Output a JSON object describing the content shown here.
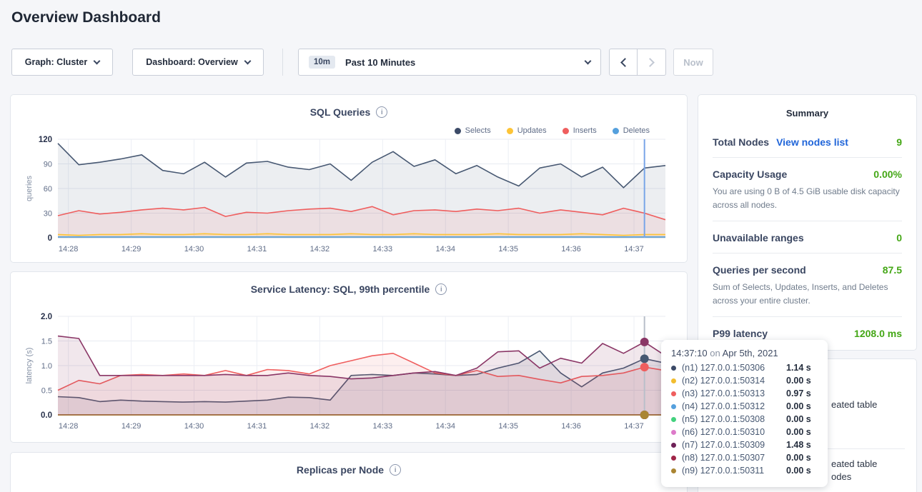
{
  "page": {
    "title": "Overview Dashboard"
  },
  "controls": {
    "graph_dropdown": "Graph: Cluster",
    "dashboard_dropdown": "Dashboard: Overview",
    "time_badge": "10m",
    "time_label": "Past 10 Minutes",
    "now_button": "Now"
  },
  "summary": {
    "title": "Summary",
    "rows": [
      {
        "label": "Total Nodes",
        "link": "View nodes list",
        "value": "9",
        "desc": ""
      },
      {
        "label": "Capacity Usage",
        "link": "",
        "value": "0.00%",
        "desc": "You are using 0 B of 4.5 GiB usable disk capacity across all nodes."
      },
      {
        "label": "Unavailable ranges",
        "link": "",
        "value": "0",
        "desc": ""
      },
      {
        "label": "Queries per second",
        "link": "",
        "value": "87.5",
        "desc": "Sum of Selects, Updates, Inserts, and Deletes across your entire cluster."
      },
      {
        "label": "P99 latency",
        "link": "",
        "value": "1208.0 ms",
        "desc": ""
      }
    ]
  },
  "events_panel": {
    "fragment1": "eated table",
    "fragment2": "eated table",
    "fragment3": "odes"
  },
  "tooltip": {
    "time": "14:37:10",
    "connector": "on",
    "date": "Apr 5th, 2021",
    "rows": [
      {
        "color": "#3b4a67",
        "label": "(n1) 127.0.0.1:50306",
        "value": "1.14 s"
      },
      {
        "color": "#f2bd2f",
        "label": "(n2) 127.0.0.1:50314",
        "value": "0.00 s"
      },
      {
        "color": "#ef5e5e",
        "label": "(n3) 127.0.0.1:50313",
        "value": "0.97 s"
      },
      {
        "color": "#55a0dd",
        "label": "(n4) 127.0.0.1:50312",
        "value": "0.00 s"
      },
      {
        "color": "#43d17e",
        "label": "(n5) 127.0.0.1:50308",
        "value": "0.00 s"
      },
      {
        "color": "#dd7ac9",
        "label": "(n6) 127.0.0.1:50310",
        "value": "0.00 s"
      },
      {
        "color": "#6e2158",
        "label": "(n7) 127.0.0.1:50309",
        "value": "1.48 s"
      },
      {
        "color": "#a02648",
        "label": "(n8) 127.0.0.1:50307",
        "value": "0.00 s"
      },
      {
        "color": "#aa8532",
        "label": "(n9) 127.0.0.1:50311",
        "value": "0.00 s"
      }
    ]
  },
  "chart_data": [
    {
      "id": "sql",
      "type": "line",
      "title": "SQL Queries",
      "ylabel": "queries",
      "ylim": [
        0,
        120
      ],
      "yticks": [
        0,
        30,
        60,
        90,
        120
      ],
      "ytick_labels": [
        "0",
        "30",
        "60",
        "90",
        "120"
      ],
      "ytick_bold": [
        true,
        false,
        false,
        false,
        true
      ],
      "xticks": [
        "14:28",
        "14:29",
        "14:30",
        "14:31",
        "14:32",
        "14:33",
        "14:34",
        "14:35",
        "14:36",
        "14:37"
      ],
      "legend": [
        {
          "label": "Selects",
          "color": "#3b4a67"
        },
        {
          "label": "Updates",
          "color": "#fdc437"
        },
        {
          "label": "Inserts",
          "color": "#ef5e5e"
        },
        {
          "label": "Deletes",
          "color": "#55a0dd"
        }
      ],
      "crosshair": {
        "index": 28,
        "color": "#79a5e8",
        "dots": false
      },
      "series": [
        {
          "name": "Selects",
          "color": "#475872",
          "fill": "rgba(71,88,114,0.10)",
          "values": [
            115,
            89,
            92,
            96,
            101,
            82,
            78,
            92,
            74,
            91,
            93,
            86,
            83,
            90,
            70,
            92,
            105,
            87,
            95,
            78,
            88,
            74,
            63,
            85,
            90,
            74,
            86,
            61,
            85,
            88
          ]
        },
        {
          "name": "Inserts",
          "color": "#ef5e5e",
          "fill": "rgba(239,94,94,0.10)",
          "values": [
            27,
            33,
            29,
            31,
            34,
            36,
            34,
            37,
            26,
            31,
            30,
            33,
            35,
            36,
            32,
            38,
            28,
            33,
            34,
            32,
            35,
            33,
            36,
            30,
            34,
            31,
            28,
            36,
            30,
            22
          ]
        },
        {
          "name": "Updates",
          "color": "#fdc437",
          "fill": "rgba(253,196,55,0.15)",
          "values": [
            4,
            3,
            4,
            4,
            5,
            4,
            4,
            5,
            4,
            4,
            5,
            4,
            4,
            4,
            5,
            4,
            4,
            5,
            4,
            4,
            4,
            5,
            4,
            4,
            4,
            5,
            4,
            3,
            4,
            4
          ]
        },
        {
          "name": "Deletes",
          "color": "#55a0dd",
          "fill": "rgba(85,160,221,0.15)",
          "values": [
            1,
            1,
            1,
            1,
            1,
            1,
            1,
            1,
            1,
            1,
            1,
            1,
            1,
            1,
            1,
            1,
            1,
            1,
            1,
            1,
            1,
            1,
            1,
            1,
            1,
            1,
            1,
            1,
            1,
            1
          ]
        }
      ]
    },
    {
      "id": "latency",
      "type": "line",
      "title": "Service Latency: SQL, 99th percentile",
      "ylabel": "latency (s)",
      "ylim": [
        0,
        2
      ],
      "yticks": [
        0,
        0.5,
        1.0,
        1.5,
        2.0
      ],
      "ytick_labels": [
        "0.0",
        "0.5",
        "1.0",
        "1.5",
        "2.0"
      ],
      "ytick_bold": [
        true,
        false,
        false,
        false,
        true
      ],
      "xticks": [
        "14:28",
        "14:29",
        "14:30",
        "14:31",
        "14:32",
        "14:33",
        "14:34",
        "14:35",
        "14:36",
        "14:37"
      ],
      "legend": [],
      "crosshair": {
        "index": 28,
        "color": "#b9bfca",
        "dots": true,
        "dot_radius": 6
      },
      "series": [
        {
          "name": "n2",
          "color": "#f2bd2f",
          "fill": "none",
          "values": [
            0,
            0,
            0,
            0,
            0,
            0,
            0,
            0,
            0,
            0,
            0,
            0,
            0,
            0,
            0,
            0,
            0,
            0,
            0,
            0,
            0,
            0,
            0,
            0,
            0,
            0,
            0,
            0,
            0,
            0
          ]
        },
        {
          "name": "n4",
          "color": "#55a0dd",
          "fill": "none",
          "values": [
            0,
            0,
            0,
            0,
            0,
            0,
            0,
            0,
            0,
            0,
            0,
            0,
            0,
            0,
            0,
            0,
            0,
            0,
            0,
            0,
            0,
            0,
            0,
            0,
            0,
            0,
            0,
            0,
            0,
            0
          ]
        },
        {
          "name": "n5",
          "color": "#43d17e",
          "fill": "none",
          "values": [
            0,
            0,
            0,
            0,
            0,
            0,
            0,
            0,
            0,
            0,
            0,
            0,
            0,
            0,
            0,
            0,
            0,
            0,
            0,
            0,
            0,
            0,
            0,
            0,
            0,
            0,
            0,
            0,
            0,
            0
          ]
        },
        {
          "name": "n6",
          "color": "#dd7ac9",
          "fill": "none",
          "values": [
            0,
            0,
            0,
            0,
            0,
            0,
            0,
            0,
            0,
            0,
            0,
            0,
            0,
            0,
            0,
            0,
            0,
            0,
            0,
            0,
            0,
            0,
            0,
            0,
            0,
            0,
            0,
            0,
            0,
            0
          ]
        },
        {
          "name": "n8",
          "color": "#a02648",
          "fill": "none",
          "values": [
            0,
            0,
            0,
            0,
            0,
            0,
            0,
            0,
            0,
            0,
            0,
            0,
            0,
            0,
            0,
            0,
            0,
            0,
            0,
            0,
            0,
            0,
            0,
            0,
            0,
            0,
            0,
            0,
            0,
            0
          ]
        },
        {
          "name": "n9",
          "color": "#aa8532",
          "fill": "none",
          "values": [
            0,
            0,
            0,
            0,
            0,
            0,
            0,
            0,
            0,
            0,
            0,
            0,
            0,
            0,
            0,
            0,
            0,
            0,
            0,
            0,
            0,
            0,
            0,
            0,
            0,
            0,
            0,
            0,
            0,
            0
          ]
        },
        {
          "name": "n1",
          "color": "#475872",
          "fill": "rgba(71,88,114,0.10)",
          "values": [
            0.37,
            0.35,
            0.27,
            0.3,
            0.28,
            0.27,
            0.26,
            0.27,
            0.26,
            0.28,
            0.3,
            0.36,
            0.35,
            0.3,
            0.8,
            0.82,
            0.8,
            0.85,
            0.83,
            0.8,
            0.82,
            0.95,
            1.05,
            1.3,
            0.85,
            0.57,
            0.85,
            0.95,
            1.14,
            1.05
          ]
        },
        {
          "name": "n3",
          "color": "#ef5e5e",
          "fill": "rgba(239,94,94,0.10)",
          "values": [
            0.5,
            0.7,
            0.63,
            0.8,
            0.82,
            0.8,
            0.83,
            0.8,
            0.9,
            0.8,
            0.92,
            0.9,
            0.83,
            1.0,
            1.1,
            1.2,
            1.25,
            1.05,
            0.85,
            0.8,
            0.9,
            0.78,
            0.8,
            0.72,
            0.65,
            0.78,
            0.8,
            0.85,
            0.97,
            0.9
          ]
        },
        {
          "name": "n7",
          "color": "#8a3666",
          "fill": "rgba(138,54,102,0.12)",
          "values": [
            1.6,
            1.55,
            0.8,
            0.8,
            0.8,
            0.8,
            0.8,
            0.8,
            0.82,
            0.8,
            0.8,
            0.85,
            0.8,
            0.78,
            0.73,
            0.75,
            0.8,
            0.85,
            0.88,
            0.8,
            0.95,
            1.28,
            1.3,
            0.95,
            1.15,
            1.05,
            1.45,
            1.25,
            1.48,
            1.2
          ]
        }
      ]
    },
    {
      "id": "replicas",
      "type": "line",
      "title": "Replicas per Node"
    }
  ]
}
